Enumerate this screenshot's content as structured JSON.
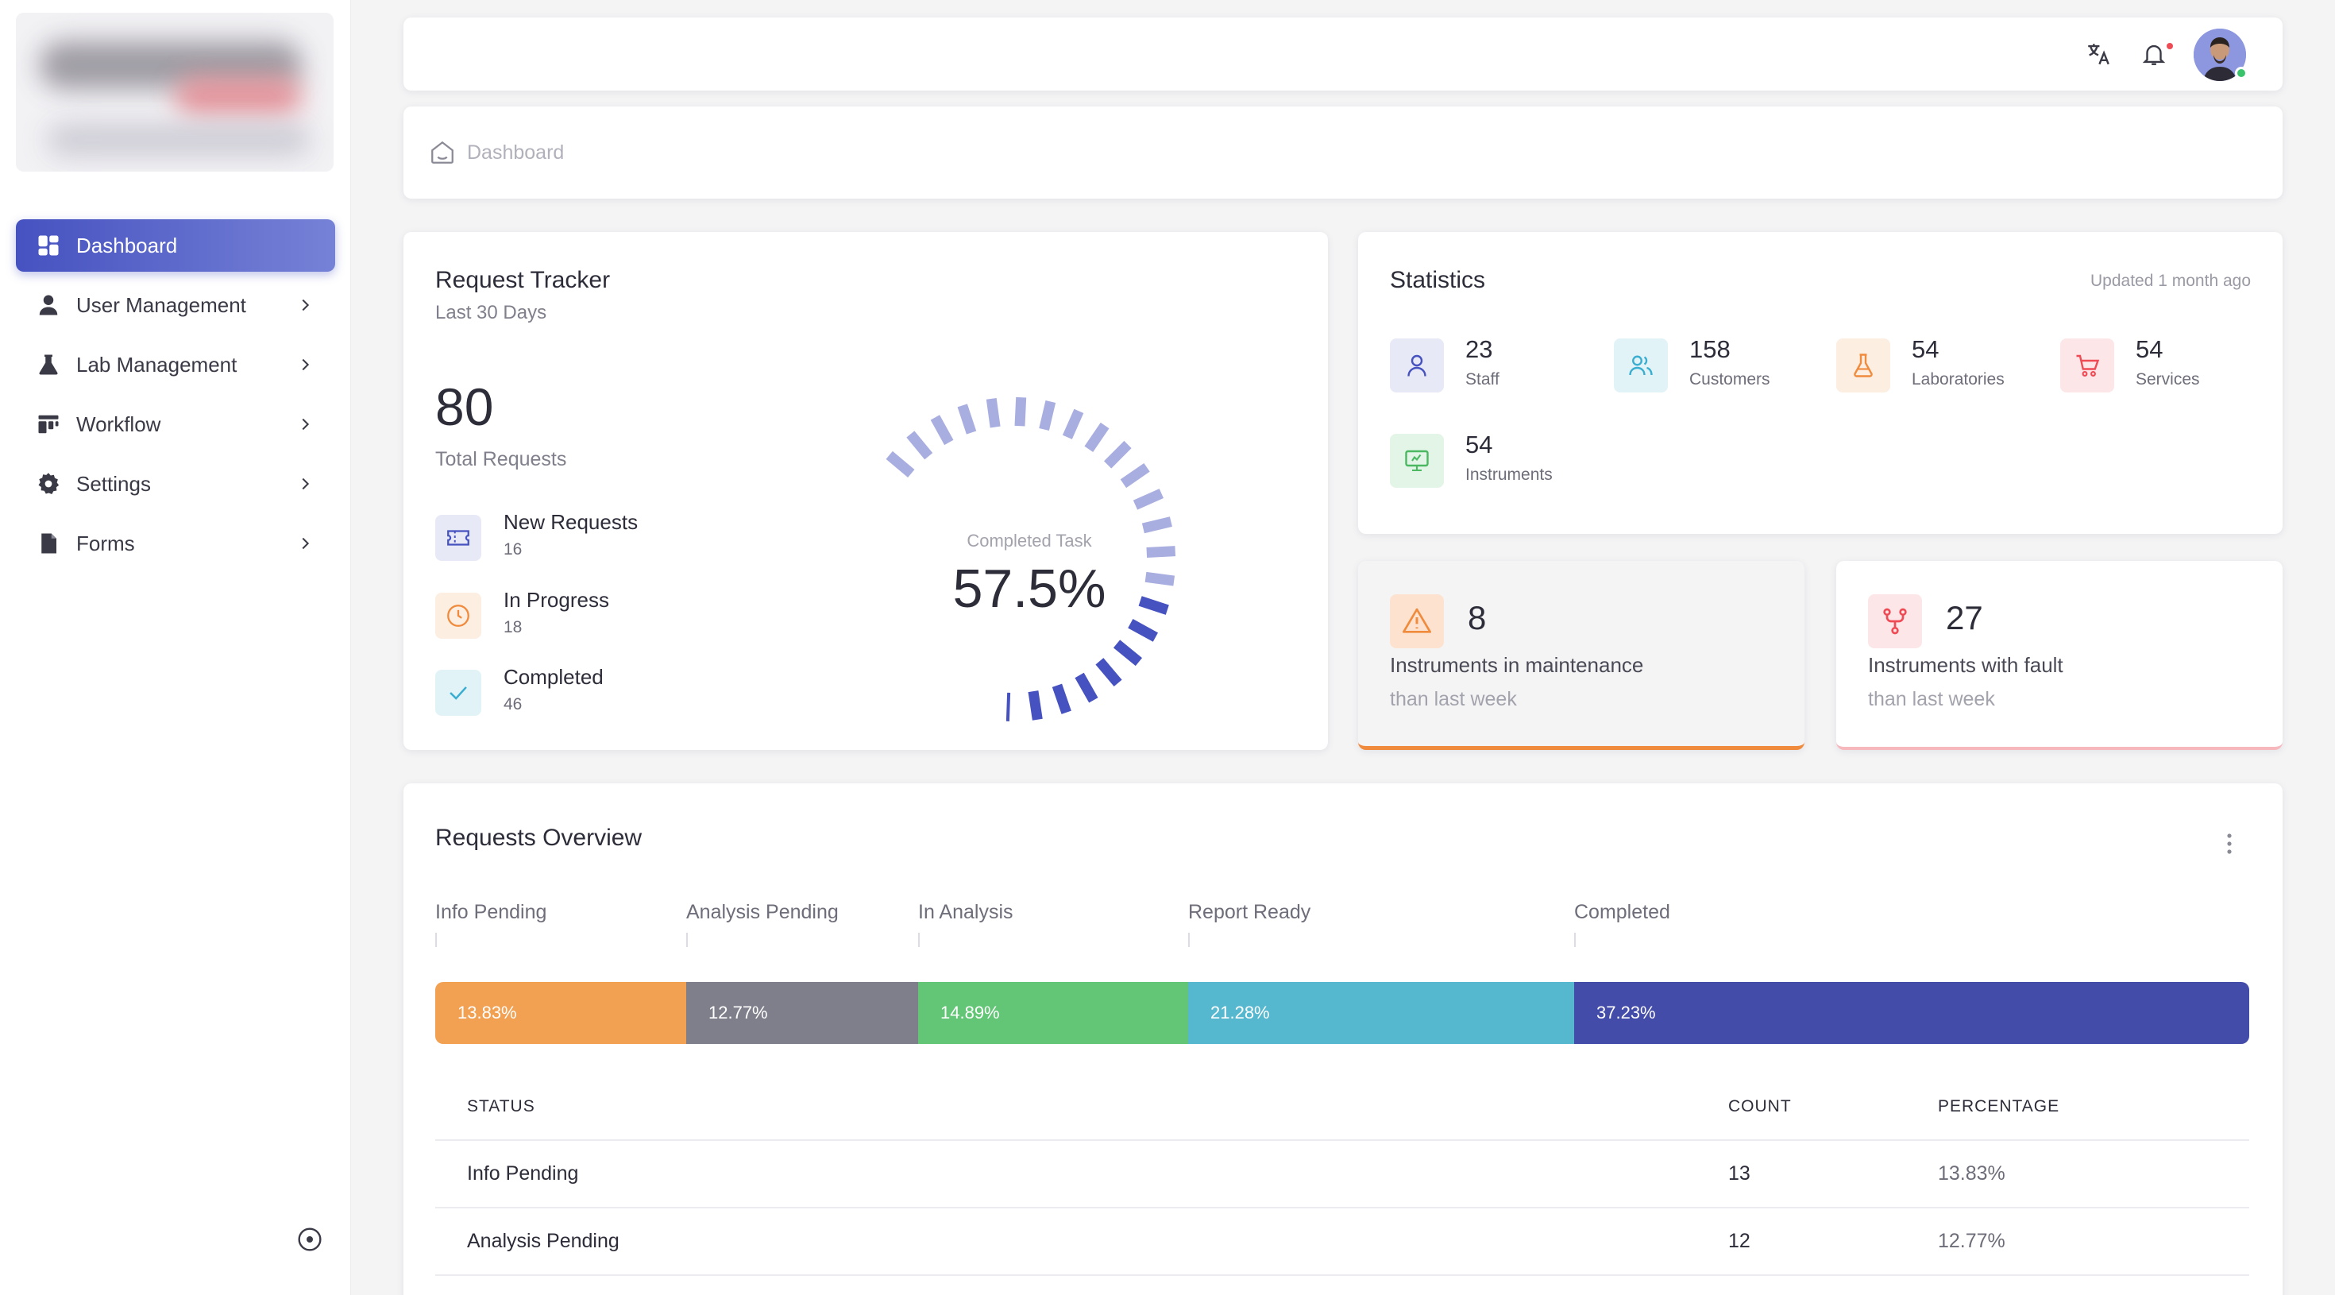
{
  "sidebar": {
    "items": [
      {
        "label": "Dashboard",
        "icon": "dashboard-icon"
      },
      {
        "label": "User Management",
        "icon": "user-icon"
      },
      {
        "label": "Lab Management",
        "icon": "flask-icon"
      },
      {
        "label": "Workflow",
        "icon": "workflow-icon"
      },
      {
        "label": "Settings",
        "icon": "gear-icon"
      },
      {
        "label": "Forms",
        "icon": "document-icon"
      }
    ]
  },
  "breadcrumb": {
    "current": "Dashboard"
  },
  "tracker": {
    "title": "Request Tracker",
    "subtitle": "Last 30 Days",
    "total": "80",
    "total_label": "Total Requests",
    "items": [
      {
        "label": "New Requests",
        "value": "16"
      },
      {
        "label": "In Progress",
        "value": "18"
      },
      {
        "label": "Completed",
        "value": "46"
      }
    ],
    "gauge_label": "Completed Task",
    "gauge_value": "57.5%",
    "gauge_fraction": 0.575
  },
  "statistics": {
    "title": "Statistics",
    "updated": "Updated 1 month ago",
    "items": [
      {
        "value": "23",
        "label": "Staff"
      },
      {
        "value": "158",
        "label": "Customers"
      },
      {
        "value": "54",
        "label": "Laboratories"
      },
      {
        "value": "54",
        "label": "Services"
      },
      {
        "value": "54",
        "label": "Instruments"
      }
    ]
  },
  "maintenance": {
    "value": "8",
    "label": "Instruments in maintenance",
    "sub": "than last week"
  },
  "fault": {
    "value": "27",
    "label": "Instruments with fault",
    "sub": "than last week"
  },
  "overview": {
    "title": "Requests Overview",
    "segments": [
      {
        "label": "Info Pending",
        "pct": "13.83%",
        "fraction": 0.1383,
        "color": "#f2a052"
      },
      {
        "label": "Analysis Pending",
        "pct": "12.77%",
        "fraction": 0.1277,
        "color": "#7f7f8c"
      },
      {
        "label": "In Analysis",
        "pct": "14.89%",
        "fraction": 0.1489,
        "color": "#62c676"
      },
      {
        "label": "Report Ready",
        "pct": "21.28%",
        "fraction": 0.2128,
        "color": "#56b8cf"
      },
      {
        "label": "Completed",
        "pct": "37.23%",
        "fraction": 0.3723,
        "color": "#434ca8"
      }
    ],
    "table": {
      "headers": [
        "STATUS",
        "COUNT",
        "PERCENTAGE"
      ],
      "rows": [
        {
          "status": "Info Pending",
          "count": "13",
          "percentage": "13.83%"
        },
        {
          "status": "Analysis Pending",
          "count": "12",
          "percentage": "12.77%"
        }
      ]
    }
  }
}
